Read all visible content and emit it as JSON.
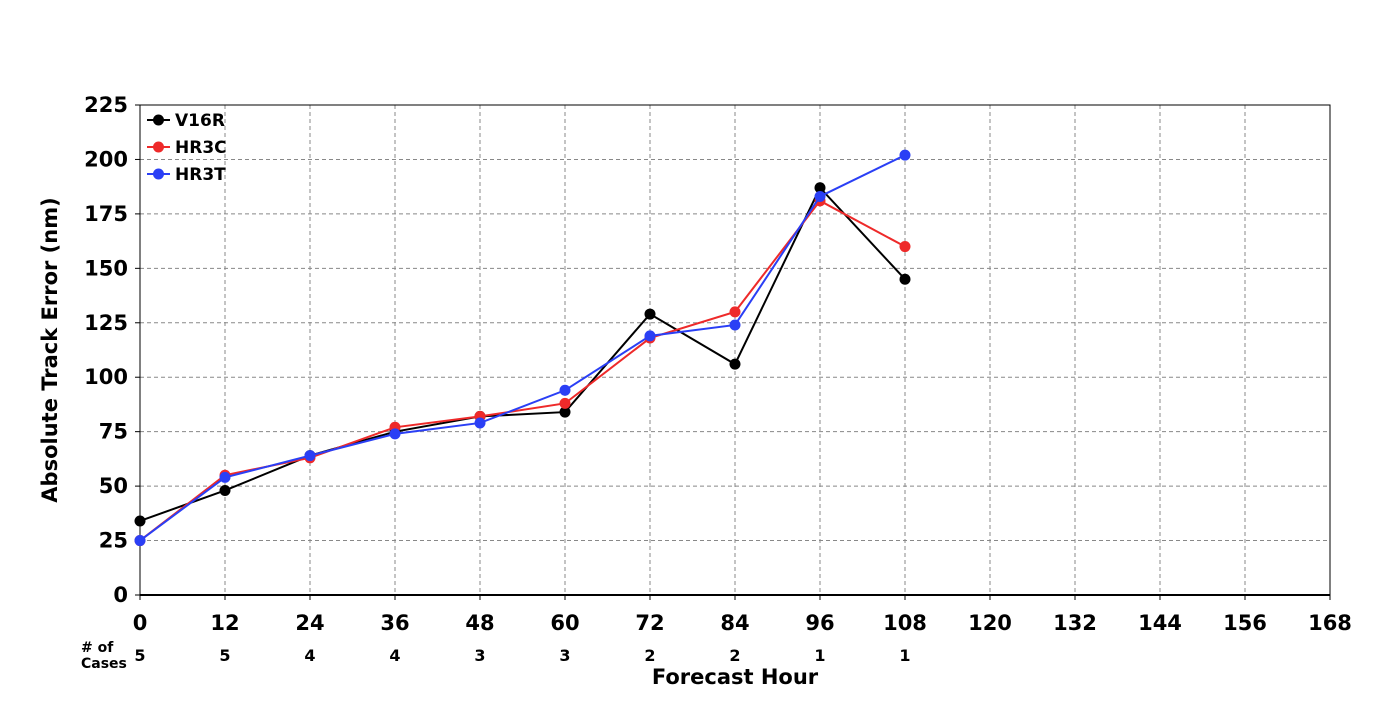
{
  "chart_data": {
    "type": "line",
    "title": "",
    "xlabel": "Forecast Hour",
    "ylabel": "Absolute Track Error (nm)",
    "xlim": [
      0,
      168
    ],
    "ylim": [
      0,
      225
    ],
    "x_ticks": [
      0,
      12,
      24,
      36,
      48,
      60,
      72,
      84,
      96,
      108,
      120,
      132,
      144,
      156,
      168
    ],
    "y_ticks": [
      0,
      25,
      50,
      75,
      100,
      125,
      150,
      175,
      200,
      225
    ],
    "grid": true,
    "legend_position": "top-left",
    "series": [
      {
        "name": "V16R",
        "color": "#000000",
        "x": [
          0,
          12,
          24,
          36,
          48,
          60,
          72,
          84,
          96,
          108
        ],
        "values": [
          34,
          48,
          64,
          75,
          82,
          84,
          129,
          106,
          187,
          145
        ]
      },
      {
        "name": "HR3C",
        "color": "#ee2a2a",
        "x": [
          0,
          12,
          24,
          36,
          48,
          60,
          72,
          84,
          96,
          108
        ],
        "values": [
          25,
          55,
          63,
          77,
          82,
          88,
          118,
          130,
          181,
          160
        ]
      },
      {
        "name": "HR3T",
        "color": "#2a3ff5",
        "x": [
          0,
          12,
          24,
          36,
          48,
          60,
          72,
          84,
          96,
          108
        ],
        "values": [
          25,
          54,
          64,
          74,
          79,
          94,
          119,
          124,
          183,
          202
        ]
      }
    ],
    "cases": {
      "label_line1": "# of",
      "label_line2": "Cases",
      "x": [
        0,
        12,
        24,
        36,
        48,
        60,
        72,
        84,
        96,
        108
      ],
      "values": [
        "5",
        "5",
        "4",
        "4",
        "3",
        "3",
        "2",
        "2",
        "1",
        "1"
      ]
    }
  }
}
